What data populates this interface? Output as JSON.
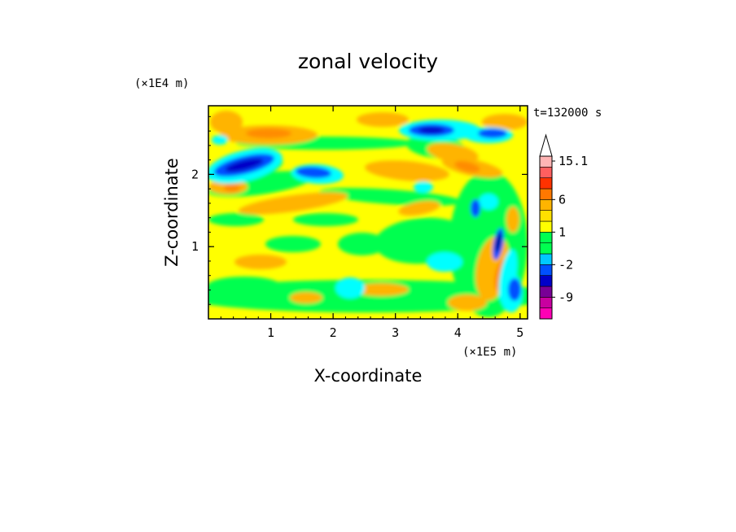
{
  "chart_data": {
    "type": "heatmap",
    "title": "zonal velocity",
    "xlabel": "X-coordinate",
    "ylabel": "Z-coordinate",
    "x_unit": "(×1E5 m)",
    "y_unit": "(×1E4 m)",
    "time_label": "t=132000 s",
    "xlim": [
      0,
      5.12
    ],
    "ylim": [
      0,
      2.95
    ],
    "x_ticks": [
      "1",
      "2",
      "3",
      "4",
      "5"
    ],
    "x_tick_values": [
      1,
      2,
      3,
      4,
      5
    ],
    "y_ticks": [
      "1",
      "2"
    ],
    "y_tick_values": [
      1,
      2
    ],
    "colorbar": {
      "labels": [
        "15.1",
        "6",
        "1",
        "-2",
        "-9"
      ],
      "label_values": [
        15.1,
        6,
        1,
        -2,
        -9
      ],
      "levels": [
        -15,
        -12,
        -9,
        -6,
        -3,
        -2,
        -1,
        0,
        1,
        2,
        3,
        6,
        9,
        12,
        15.1
      ],
      "colors": [
        "#ff00b4",
        "#c800a0",
        "#780096",
        "#0000c8",
        "#0050ff",
        "#00c8ff",
        "#00ff50",
        "#00ff50",
        "#ffff00",
        "#ffe000",
        "#ffb400",
        "#ff7800",
        "#ff3200",
        "#ff5f5f",
        "#ffb4b4"
      ],
      "extend": "max"
    },
    "field_colors": {
      "yellow": "#ffff00",
      "orange": "#ffb400",
      "darkorange": "#ff8c00",
      "green": "#00ff50",
      "cyan": "#00ffff",
      "blue": "#0050ff",
      "navy": "#0000c8",
      "darknavy": "#000096"
    }
  }
}
